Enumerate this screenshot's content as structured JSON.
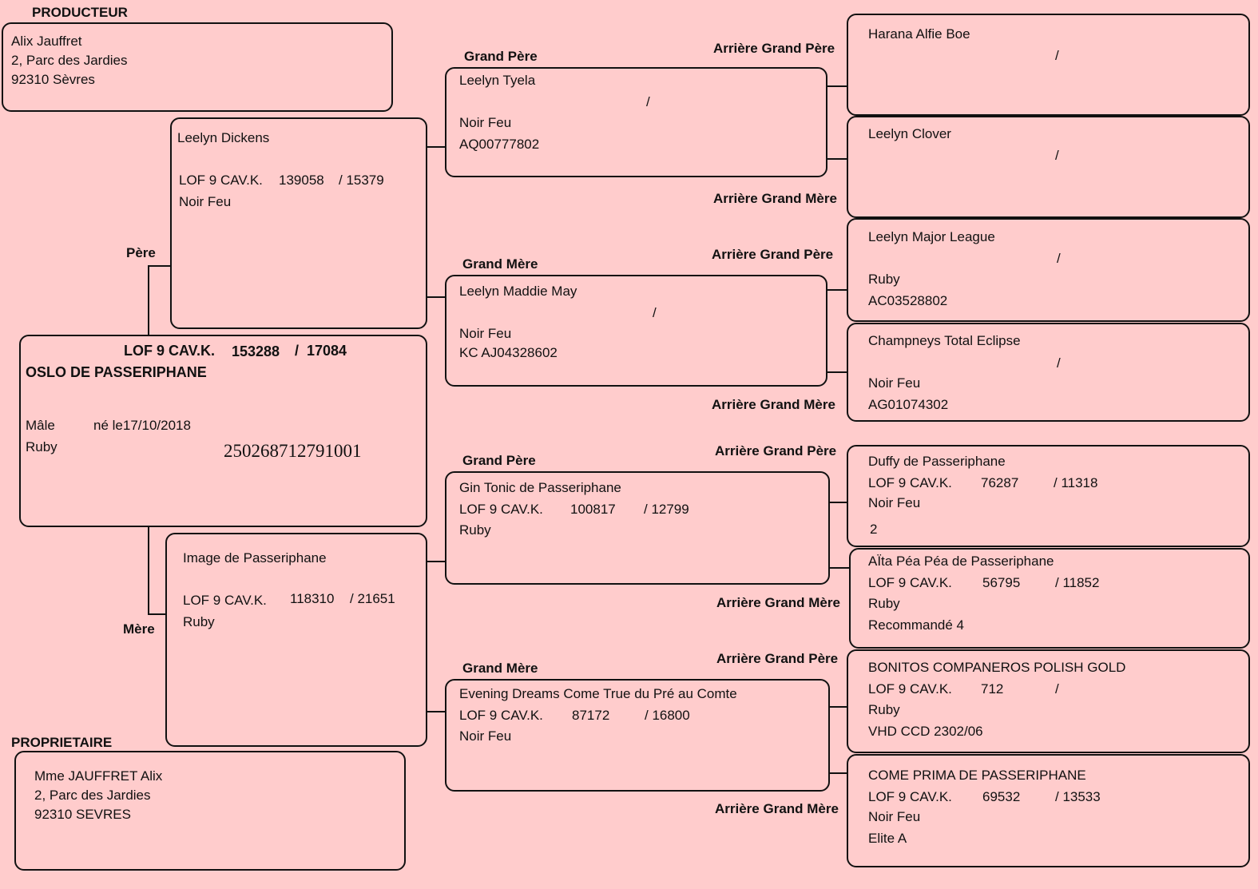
{
  "producteur": {
    "label": "PRODUCTEUR",
    "name": "Alix Jauffret",
    "address1": "2, Parc des Jardies",
    "address2": "92310 Sèvres"
  },
  "proprietaire": {
    "label": "PROPRIETAIRE",
    "name": "Mme JAUFFRET Alix",
    "address1": "2, Parc des Jardies",
    "address2": "92310 SEVRES"
  },
  "subject": {
    "lof_prefix": "LOF 9 CAV.K.",
    "lof_number": "153288",
    "lof_sep": "/",
    "lof_tattoo": "17084",
    "name": "OSLO DE PASSERIPHANE",
    "sex": "Mâle",
    "born": "né le17/10/2018",
    "color": "Ruby",
    "chip": "250268712791001"
  },
  "labels": {
    "pere": "Père",
    "mere": "Mère",
    "grand_pere": "Grand Père",
    "grand_mere": "Grand Mère",
    "arriere_grand_pere": "Arrière Grand Père",
    "arriere_grand_mere": "Arrière Grand Mère"
  },
  "pere": {
    "name": "Leelyn Dickens",
    "lof_prefix": "LOF 9 CAV.K.",
    "lof_number": "139058",
    "lof_rest": "/  15379",
    "color": "Noir Feu"
  },
  "mere": {
    "name": "Image de Passeriphane",
    "lof_prefix": "LOF 9 CAV.K.",
    "lof_number": "118310",
    "lof_rest": "/  21651",
    "color": "Ruby"
  },
  "gp_paternal": {
    "name": "Leelyn Tyela",
    "slash": "/",
    "color": "Noir Feu",
    "reg": "AQ00777802"
  },
  "gm_paternal": {
    "name": "Leelyn Maddie May",
    "slash": "/",
    "color": "Noir Feu",
    "reg": "KC AJ04328602"
  },
  "gp_maternal": {
    "name": "Gin Tonic de Passeriphane",
    "lof_prefix": "LOF 9 CAV.K.",
    "lof_number": "100817",
    "lof_rest": "/  12799",
    "color": "Ruby"
  },
  "gm_maternal": {
    "name": "Evening Dreams Come True du Pré au Comte",
    "lof_prefix": "LOF 9 CAV.K.",
    "lof_number": "87172",
    "lof_rest": "/  16800",
    "color": "Noir Feu"
  },
  "ggp1": {
    "name": "Harana Alfie Boe",
    "slash": "/"
  },
  "ggm1": {
    "name": "Leelyn Clover",
    "slash": "/"
  },
  "ggp2": {
    "name": "Leelyn Major League",
    "slash": "/",
    "color": "Ruby",
    "reg": "AC03528802"
  },
  "ggm2": {
    "name": "Champneys Total Eclipse",
    "slash": "/",
    "color": "Noir Feu",
    "reg": "AG01074302"
  },
  "ggp3": {
    "name": "Duffy de Passeriphane",
    "lof_prefix": "LOF 9 CAV.K.",
    "lof_number": "76287",
    "lof_rest": "/  11318",
    "color": "Noir Feu",
    "extra": "2"
  },
  "ggm3": {
    "name": "AÏta Péa Péa de Passeriphane",
    "lof_prefix": "LOF 9 CAV.K.",
    "lof_number": "56795",
    "lof_rest": "/  11852",
    "color": "Ruby",
    "extra": "Recommandé 4"
  },
  "ggp4": {
    "name": "BONITOS COMPANEROS POLISH GOLD",
    "lof_prefix": "LOF 9 CAV.K.",
    "lof_number": "712",
    "lof_rest": "/",
    "color": "Ruby",
    "extra": "VHD CCD 2302/06"
  },
  "ggm4": {
    "name": "COME PRIMA DE PASSERIPHANE",
    "lof_prefix": "LOF 9 CAV.K.",
    "lof_number": "69532",
    "lof_rest": "/  13533",
    "color": "Noir Feu",
    "extra": "Elite A"
  }
}
